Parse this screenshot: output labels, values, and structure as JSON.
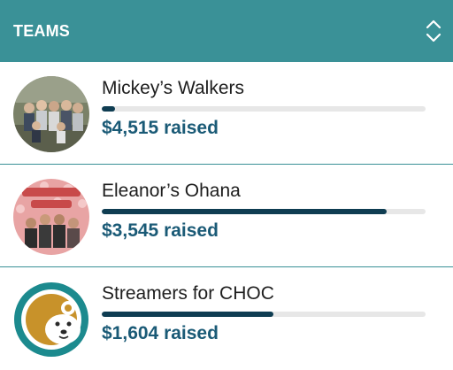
{
  "header": {
    "title": "TEAMS"
  },
  "teams": [
    {
      "name": "Mickey’s Walkers",
      "amount": "$4,515 raised",
      "progress": 0.04,
      "avatar": "group-photo"
    },
    {
      "name": "Eleanor’s Ohana",
      "amount": "$3,545 raised",
      "progress": 0.88,
      "avatar": "group-photo-pink"
    },
    {
      "name": "Streamers for CHOC",
      "amount": "$1,604 raised",
      "progress": 0.53,
      "avatar": "bear-logo"
    }
  ],
  "colors": {
    "header": "#3a9197",
    "bar_fill": "#0f3d52",
    "amount": "#1a5a76",
    "bar_track": "#e7e7e7"
  }
}
